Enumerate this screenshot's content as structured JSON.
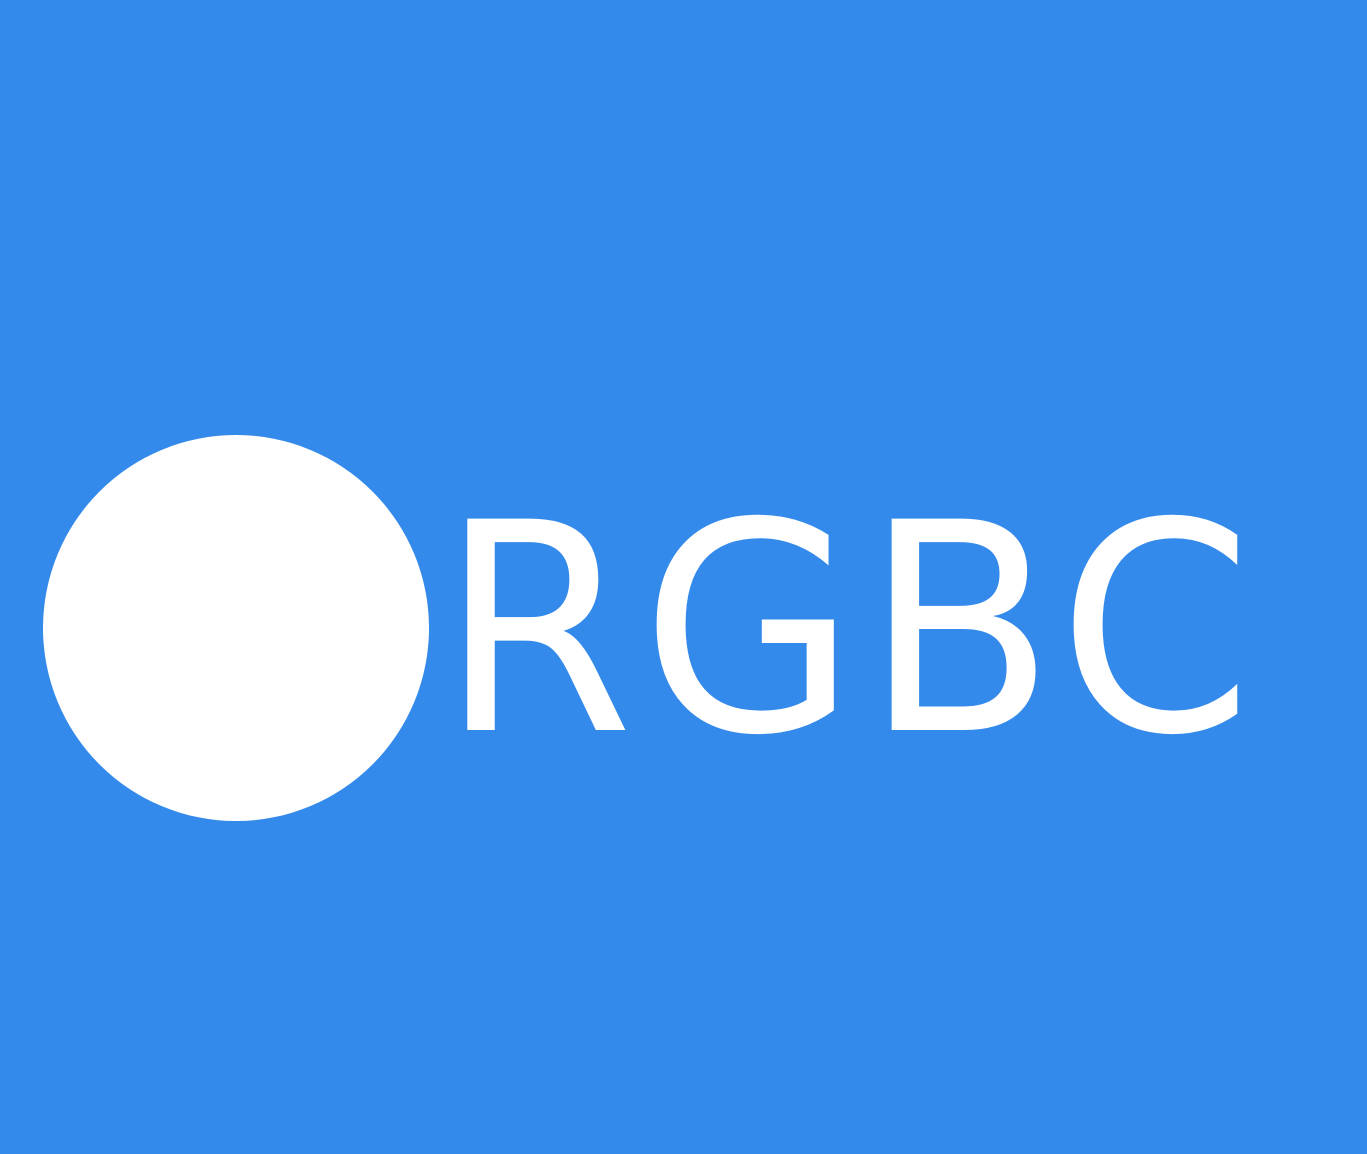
{
  "logo": {
    "wordmark": "RGBC",
    "mark_icon": "white-circle-icon",
    "colors": {
      "background": "#348aea",
      "foreground": "#ffffff"
    }
  }
}
